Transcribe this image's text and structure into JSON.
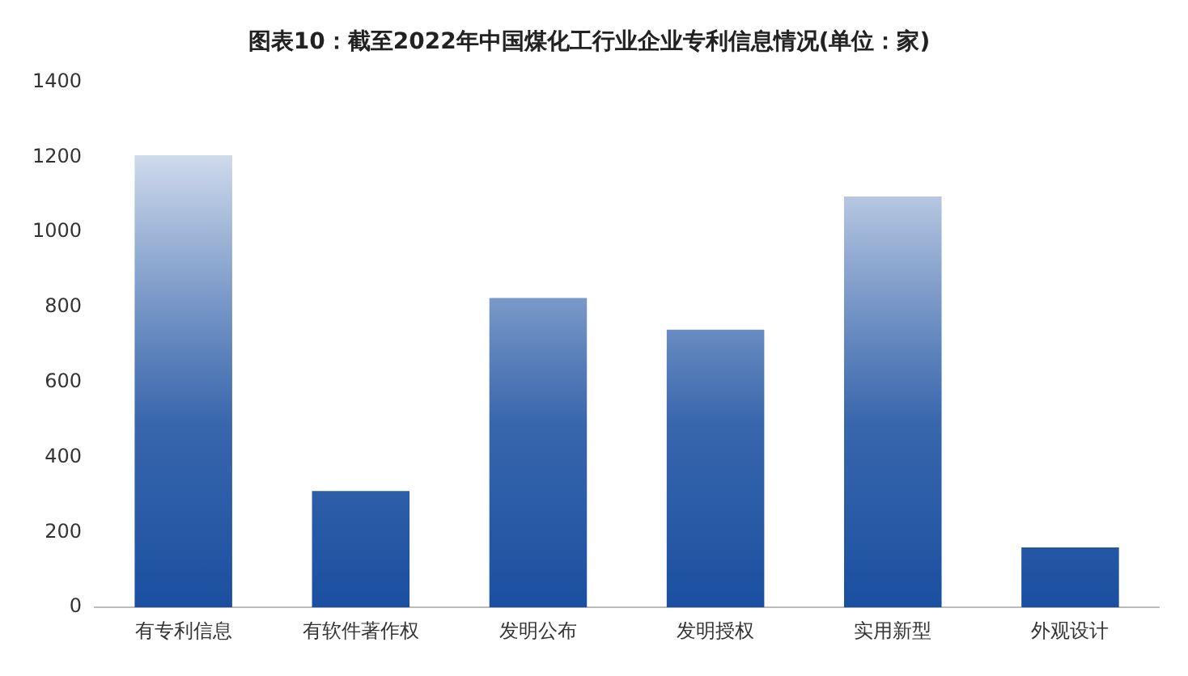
{
  "chart_data": {
    "type": "bar",
    "title": "图表10：截至2022年中国煤化工行业企业专利信息情况(单位：家)",
    "categories": [
      "有专利信息",
      "有软件著作权",
      "发明公布",
      "发明授权",
      "实用新型",
      "外观设计"
    ],
    "values": [
      1205,
      310,
      825,
      740,
      1095,
      160
    ],
    "color": "#1a4fa0",
    "ylim": [
      0,
      1400
    ],
    "yticks": [
      0,
      200,
      400,
      600,
      800,
      1000,
      1200,
      1400
    ],
    "grid": false,
    "legend": false
  }
}
